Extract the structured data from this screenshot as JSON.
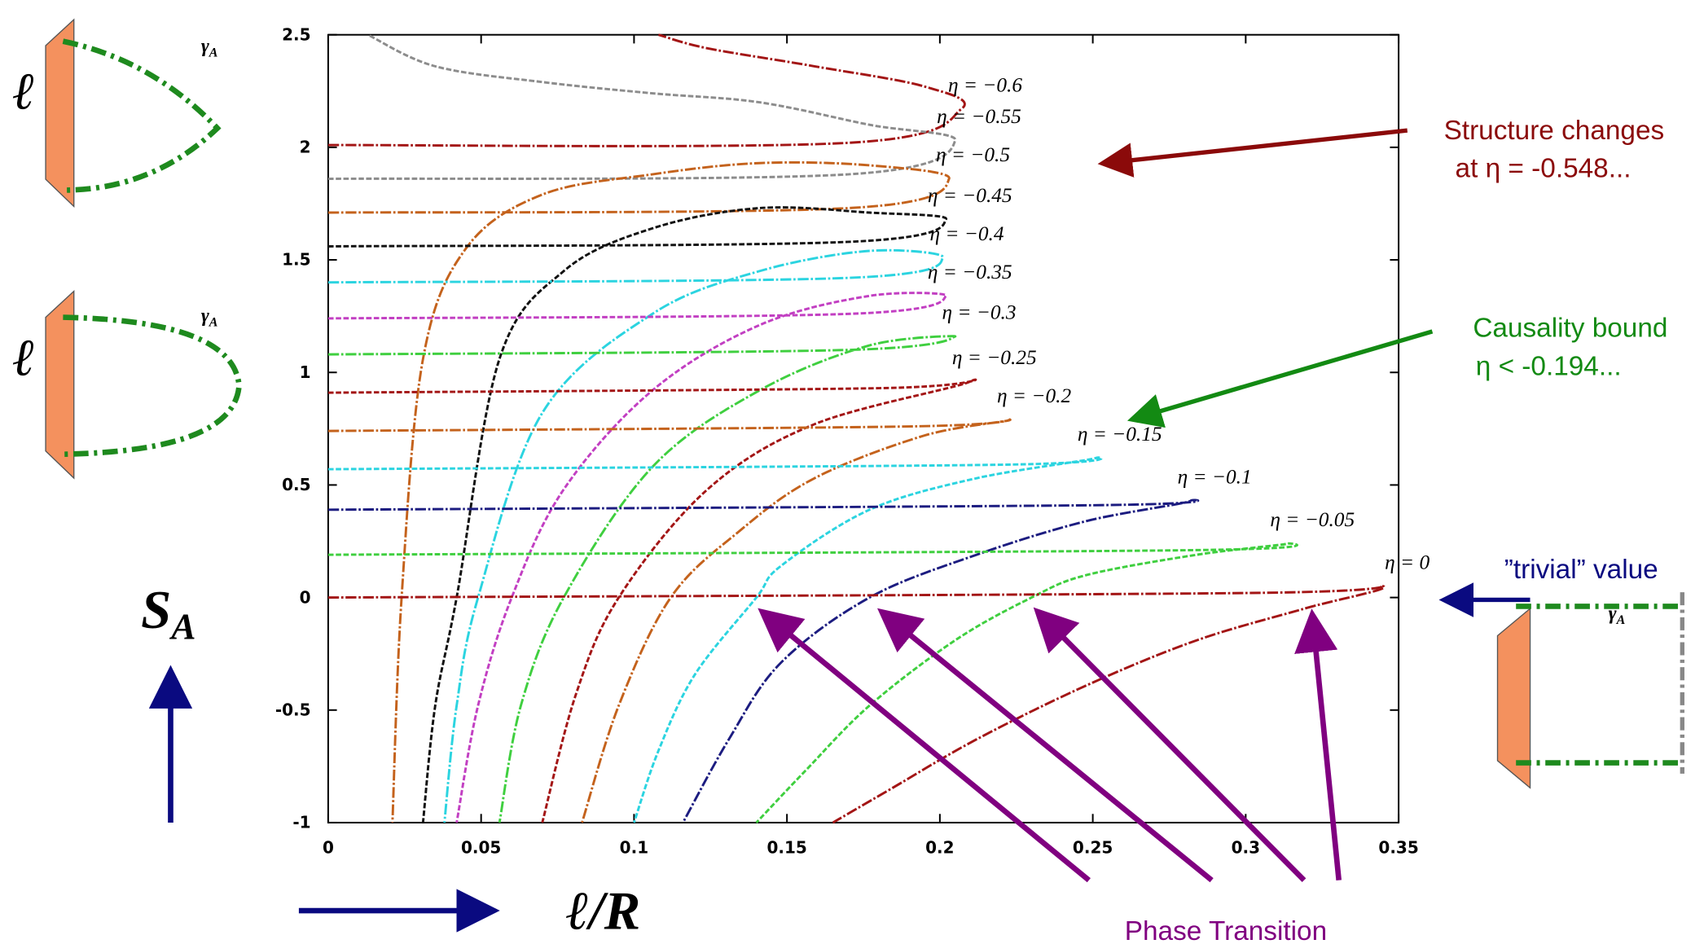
{
  "chart_data": {
    "type": "line",
    "xlabel": "ℓ/R",
    "ylabel": "S",
    "ylabel_subscript": "A",
    "xlim": [
      0,
      0.35
    ],
    "ylim": [
      -1,
      2.5
    ],
    "xticks": [
      0,
      0.05,
      0.1,
      0.15,
      0.2,
      0.25,
      0.3,
      0.35
    ],
    "yticks": [
      -1,
      -0.5,
      0,
      0.5,
      1,
      1.5,
      2,
      2.5
    ],
    "series": [
      {
        "name": "η = −0.6",
        "color": "#a31515",
        "x": [
          0,
          0.17,
          0.207,
          0.195,
          0.159,
          0.124,
          0.108
        ],
        "values": [
          2.01,
          2.02,
          2.17,
          2.27,
          2.36,
          2.44,
          2.5
        ]
      },
      {
        "name": "η = −0.55",
        "color": "#8c8c8c",
        "x": [
          0,
          0.17,
          0.205,
          0.177,
          0.141,
          0.106,
          0.07,
          0.035,
          0.013
        ],
        "values": [
          1.86,
          1.88,
          2.03,
          2.1,
          2.2,
          2.24,
          2.29,
          2.36,
          2.5
        ]
      },
      {
        "name": "η = −0.5",
        "color": "#c4621c",
        "x": [
          0,
          0.17,
          0.203,
          0.177,
          0.141,
          0.106,
          0.07,
          0.045,
          0.031,
          0.024,
          0.021
        ],
        "values": [
          1.71,
          1.73,
          1.86,
          1.92,
          1.93,
          1.88,
          1.79,
          1.55,
          1.06,
          0,
          -1
        ]
      },
      {
        "name": "η = −0.45",
        "color": "#111111",
        "x": [
          0,
          0.17,
          0.202,
          0.177,
          0.141,
          0.106,
          0.077,
          0.056,
          0.042,
          0.035,
          0.031
        ],
        "values": [
          1.56,
          1.58,
          1.68,
          1.71,
          1.73,
          1.64,
          1.45,
          1.06,
          0,
          -0.48,
          -1
        ]
      },
      {
        "name": "η = −0.4",
        "color": "#2bd4e0",
        "x": [
          0,
          0.17,
          0.201,
          0.177,
          0.141,
          0.106,
          0.07,
          0.049,
          0.042,
          0.038
        ],
        "values": [
          1.4,
          1.42,
          1.51,
          1.54,
          1.45,
          1.26,
          0.82,
          0,
          -0.48,
          -1
        ]
      },
      {
        "name": "η = −0.35",
        "color": "#c23fc2",
        "x": [
          0,
          0.17,
          0.202,
          0.177,
          0.141,
          0.106,
          0.077,
          0.06,
          0.049,
          0.042
        ],
        "values": [
          1.24,
          1.26,
          1.34,
          1.34,
          1.21,
          0.92,
          0.48,
          0,
          -0.48,
          -1
        ]
      },
      {
        "name": "η = −0.3",
        "color": "#3fcf3f",
        "x": [
          0,
          0.17,
          0.205,
          0.177,
          0.141,
          0.106,
          0.077,
          0.063,
          0.056
        ],
        "values": [
          1.08,
          1.1,
          1.16,
          1.12,
          0.92,
          0.58,
          0,
          -0.48,
          -1
        ]
      },
      {
        "name": "η = −0.25",
        "color": "#a31515",
        "x": [
          0,
          0.18,
          0.21,
          0.159,
          0.124,
          0.095,
          0.081,
          0.07
        ],
        "values": [
          0.91,
          0.93,
          0.96,
          0.77,
          0.48,
          0,
          -0.43,
          -1
        ]
      },
      {
        "name": "η = −0.2",
        "color": "#c4621c",
        "x": [
          0,
          0.19,
          0.223,
          0.195,
          0.159,
          0.134,
          0.112,
          0.095,
          0.083
        ],
        "values": [
          0.74,
          0.76,
          0.79,
          0.72,
          0.53,
          0.29,
          0,
          -0.48,
          -1
        ]
      },
      {
        "name": "η = −0.15",
        "color": "#2bd4e0",
        "x": [
          0,
          0.22,
          0.251,
          0.212,
          0.177,
          0.148,
          0.14,
          0.12,
          0.108,
          0.1
        ],
        "values": [
          0.57,
          0.59,
          0.62,
          0.53,
          0.39,
          0.14,
          0,
          -0.34,
          -0.68,
          -1
        ]
      },
      {
        "name": "η = −0.1",
        "color": "#1c1c80",
        "x": [
          0,
          0.25,
          0.282,
          0.248,
          0.212,
          0.177,
          0.148,
          0.131,
          0.116
        ],
        "values": [
          0.39,
          0.41,
          0.43,
          0.34,
          0.19,
          0,
          -0.29,
          -0.63,
          -1
        ]
      },
      {
        "name": "η = −0.05",
        "color": "#3fcf3f",
        "x": [
          0,
          0.28,
          0.314,
          0.284,
          0.248,
          0.23,
          0.205,
          0.177,
          0.156,
          0.14
        ],
        "values": [
          0.19,
          0.21,
          0.24,
          0.19,
          0.1,
          0,
          -0.19,
          -0.48,
          -0.77,
          -1
        ]
      },
      {
        "name": "η = 0",
        "color": "#a31515",
        "x": [
          0,
          0.3,
          0.345,
          0.319,
          0.284,
          0.248,
          0.212,
          0.184,
          0.165
        ],
        "values": [
          0,
          0.02,
          0.05,
          -0.05,
          -0.19,
          -0.39,
          -0.63,
          -0.85,
          -1
        ]
      }
    ],
    "annotations": {
      "structure": [
        "Structure changes",
        "at  η = -0.548..."
      ],
      "causality": [
        "Causality bound",
        "η < -0.194..."
      ],
      "trivial": "”trivial” value",
      "phase": "Phase Transition"
    },
    "diagrams": [
      {
        "label": "ℓ",
        "curve_label": "γ",
        "curve_label_subscript": "A"
      },
      {
        "label": "ℓ",
        "curve_label": "γ",
        "curve_label_subscript": "A"
      },
      {
        "curve_label": "γ",
        "curve_label_subscript": "A"
      }
    ]
  }
}
